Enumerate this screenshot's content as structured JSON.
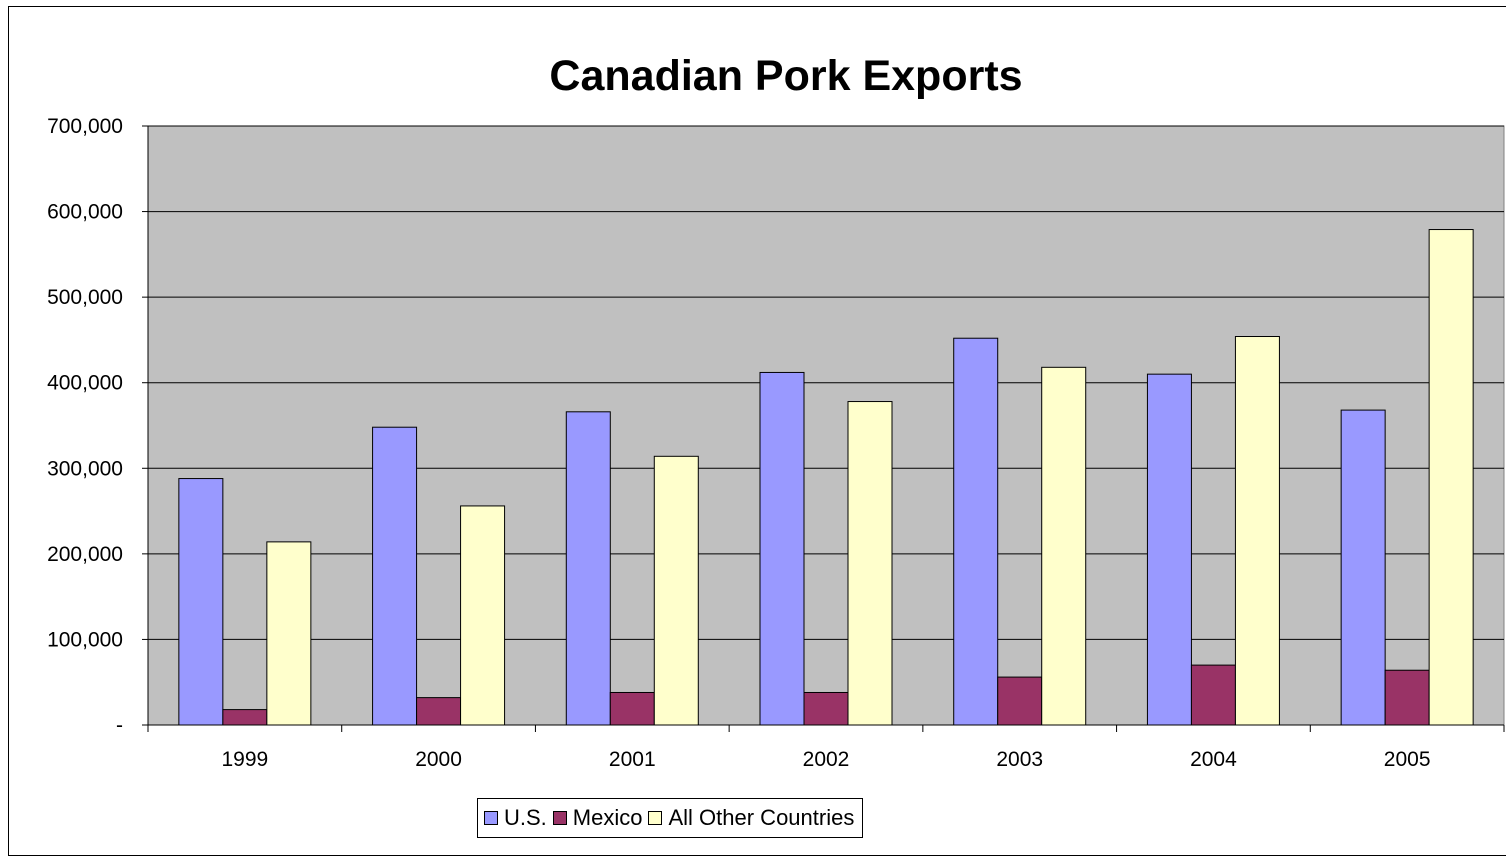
{
  "chart_data": {
    "type": "bar",
    "title": "Canadian Pork Exports",
    "xlabel": "",
    "ylabel": "",
    "categories": [
      "1999",
      "2000",
      "2001",
      "2002",
      "2003",
      "2004",
      "2005"
    ],
    "series": [
      {
        "name": "U.S.",
        "color": "#9999ff",
        "values": [
          288000,
          348000,
          366000,
          412000,
          452000,
          410000,
          368000
        ]
      },
      {
        "name": "Mexico",
        "color": "#993366",
        "values": [
          18000,
          32000,
          38000,
          38000,
          56000,
          70000,
          64000
        ]
      },
      {
        "name": "All Other Countries",
        "color": "#ffffcc",
        "values": [
          214000,
          256000,
          314000,
          378000,
          418000,
          454000,
          579000
        ]
      }
    ],
    "ylim": [
      0,
      700000
    ],
    "yticks": [
      "-",
      "100,000",
      "200,000",
      "300,000",
      "400,000",
      "500,000",
      "600,000",
      "700,000"
    ],
    "grid": true,
    "plot_background": "#c0c0c0",
    "legend_position": "bottom"
  }
}
